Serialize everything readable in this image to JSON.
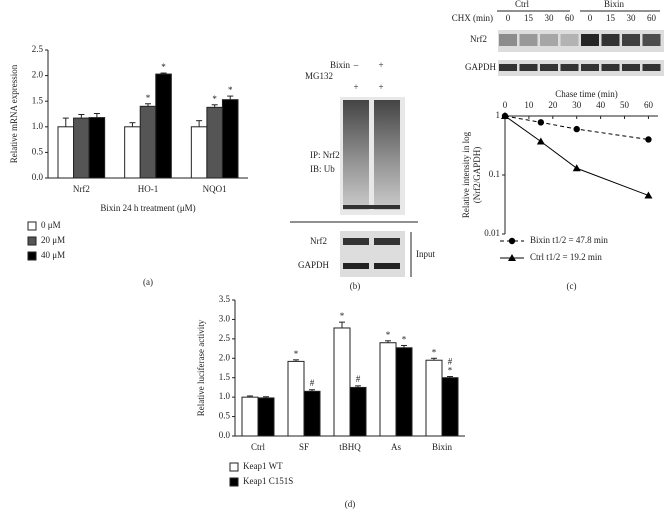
{
  "chart_data": [
    {
      "type": "bar",
      "caption": "(a)",
      "ylabel": "Relative mRNA expression",
      "xlabel": "Bixin 24 h treatment (μM)",
      "categories": [
        "Nrf2",
        "HO-1",
        "NQO1"
      ],
      "series": [
        {
          "name": "0 μM",
          "color": "#ffffff",
          "values": [
            1.0,
            1.0,
            1.0
          ],
          "errors": [
            0.17,
            0.08,
            0.12
          ],
          "significance": [
            null,
            null,
            null
          ]
        },
        {
          "name": "20 μM",
          "color": "#555555",
          "values": [
            1.17,
            1.4,
            1.38
          ],
          "errors": [
            0.07,
            0.05,
            0.05
          ],
          "significance": [
            null,
            "*",
            "*"
          ]
        },
        {
          "name": "40 μM",
          "color": "#000000",
          "values": [
            1.18,
            2.03,
            1.53
          ],
          "errors": [
            0.08,
            0.02,
            0.07
          ],
          "significance": [
            null,
            "*",
            "*"
          ]
        }
      ],
      "ylim": [
        0,
        2.5
      ],
      "yticks": [
        {
          "value": 0,
          "label": "0.0"
        },
        0.5,
        {
          "value": 1,
          "label": "1.0"
        },
        1.5,
        {
          "value": 2,
          "label": "2.0"
        },
        2.5
      ]
    },
    {
      "type": "line",
      "caption": "(c)",
      "ylabel": [
        "Relative intensity in log",
        "(Nrf2/GAPDH)"
      ],
      "xlabel": "Chase time (min)",
      "x": [
        0,
        15,
        30,
        60
      ],
      "xlim": [
        0,
        64
      ],
      "xticks": [
        0,
        10,
        20,
        30,
        40,
        50,
        60
      ],
      "log_y": true,
      "ylim": [
        0.01,
        1
      ],
      "yticks": [
        0.01,
        0.1,
        1
      ],
      "series": [
        {
          "name": "Bixin t1/2 = 47.8 min",
          "color": "#000000",
          "marker": "circle",
          "dashed": true,
          "values": [
            1,
            0.78,
            0.6,
            0.4
          ]
        },
        {
          "name": "Ctrl t1/2 = 19.2 min",
          "color": "#000000",
          "marker": "triangle",
          "dashed": false,
          "values": [
            1,
            0.37,
            0.13,
            0.045
          ]
        }
      ]
    },
    {
      "type": "bar",
      "caption": "(d)",
      "ylabel": "Relative luciferase activity",
      "categories": [
        "Ctrl",
        "SF",
        "tBHQ",
        "As",
        "Bixin"
      ],
      "series": [
        {
          "name": "Keap1 WT",
          "color": "#ffffff",
          "values": [
            1.0,
            1.92,
            2.78,
            2.4,
            1.95
          ],
          "errors": [
            0.03,
            0.04,
            0.15,
            0.05,
            0.05
          ],
          "significance": [
            null,
            "*",
            "*",
            "*",
            "*"
          ]
        },
        {
          "name": "Keap1 C151S",
          "color": "#000000",
          "values": [
            0.98,
            1.15,
            1.25,
            2.27,
            1.5
          ],
          "errors": [
            0.03,
            0.04,
            0.04,
            0.06,
            0.03
          ],
          "significance": [
            null,
            null,
            null,
            "*",
            "*"
          ],
          "hash": [
            null,
            "#",
            "#",
            null,
            "#"
          ]
        }
      ],
      "ylim": [
        0,
        3.5
      ],
      "yticks": [
        {
          "value": 0,
          "label": "0.0"
        },
        0.5,
        {
          "value": 1,
          "label": "1.0"
        },
        1.5,
        {
          "value": 2,
          "label": "2.0"
        },
        2.5,
        {
          "value": 3,
          "label": "3.0"
        },
        3.5
      ]
    }
  ],
  "blot_b": {
    "caption": "(b)",
    "bixin": "Bixin",
    "bixin_lanes": [
      "–",
      "+"
    ],
    "mg132": "MG132",
    "mg132_lanes": [
      "+",
      "+"
    ],
    "ip": "IP: Nrf2",
    "ib": "IB: Ub",
    "nrf2": "Nrf2",
    "gapdh": "GAPDH",
    "input": "Input"
  },
  "blot_c": {
    "ctrl": "Ctrl",
    "bixin": "Bixin",
    "chx": "CHX (min)",
    "times": [
      "0",
      "15",
      "30",
      "60",
      "0",
      "15",
      "30",
      "60"
    ],
    "nrf2": "Nrf2",
    "gapdh": "GAPDH"
  }
}
